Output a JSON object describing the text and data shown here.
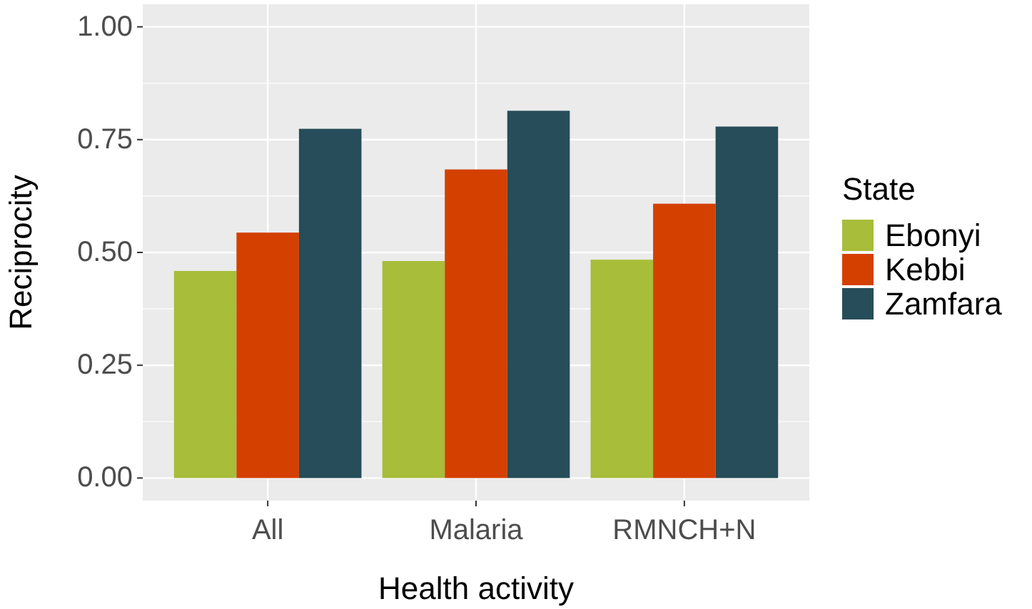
{
  "chart_data": {
    "type": "bar",
    "xlabel": "Health activity",
    "ylabel": "Reciprocity",
    "legend_title": "State",
    "categories": [
      "All",
      "Malaria",
      "RMNCH+N"
    ],
    "series": [
      {
        "name": "Ebonyi",
        "color": "#a8bd3a",
        "values": [
          0.459,
          0.481,
          0.484
        ]
      },
      {
        "name": "Kebbi",
        "color": "#d44000",
        "values": [
          0.544,
          0.684,
          0.608
        ]
      },
      {
        "name": "Zamfara",
        "color": "#264d59",
        "values": [
          0.774,
          0.814,
          0.779
        ]
      }
    ],
    "ylim": [
      -0.05,
      1.05
    ],
    "yticks": [
      {
        "value": 0,
        "label": "0.00"
      },
      {
        "value": 0.25,
        "label": "0.25"
      },
      {
        "value": 0.5,
        "label": "0.50"
      },
      {
        "value": 0.75,
        "label": "0.75"
      },
      {
        "value": 1,
        "label": "1.00"
      }
    ],
    "grid": true,
    "legend": "right"
  }
}
